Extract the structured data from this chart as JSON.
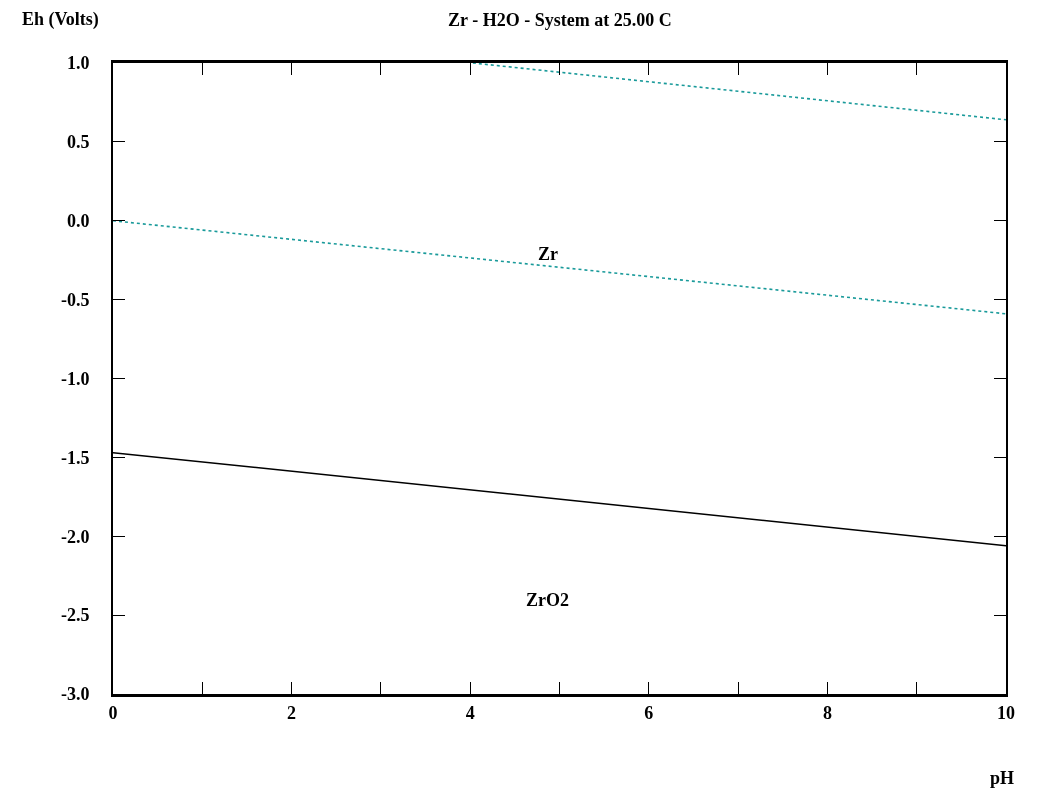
{
  "chart_data": {
    "type": "line",
    "title": "Zr - H2O - System at 25.00 C",
    "xlabel": "pH",
    "ylabel": "Eh (Volts)",
    "xlim": [
      0,
      10
    ],
    "ylim": [
      -3.0,
      1.0
    ],
    "xticks": [
      0,
      {
        "value": 1,
        "label": null
      },
      2,
      {
        "value": 3,
        "label": null
      },
      4,
      {
        "value": 5,
        "label": null
      },
      6,
      {
        "value": 7,
        "label": null
      },
      8,
      {
        "value": 9,
        "label": null
      },
      10
    ],
    "yticks": [
      {
        "value": -3.0,
        "label": "-3.0"
      },
      {
        "value": -2.5,
        "label": "-2.5"
      },
      {
        "value": -2.0,
        "label": "-2.0"
      },
      {
        "value": -1.5,
        "label": "-1.5"
      },
      {
        "value": -1.0,
        "label": "-1.0"
      },
      {
        "value": -0.5,
        "label": "-0.5"
      },
      {
        "value": 0.0,
        "label": "0.0"
      },
      {
        "value": 0.5,
        "label": "0.5"
      },
      {
        "value": 1.0,
        "label": "1.0"
      }
    ],
    "legend": false,
    "marker": "none",
    "series": [
      {
        "x": [
          4.03,
          10
        ],
        "values": [
          1.0,
          0.64
        ],
        "color": "#199a9a",
        "line_style": "dotted"
      },
      {
        "x": [
          0,
          10
        ],
        "values": [
          0.0,
          -0.59
        ],
        "color": "#199a9a",
        "line_style": "dotted"
      },
      {
        "x": [
          0,
          10
        ],
        "values": [
          -1.47,
          -2.06
        ],
        "color": "#000000",
        "line_style": "solid"
      }
    ],
    "annotations": [
      "Zr",
      "ZrO2"
    ]
  }
}
